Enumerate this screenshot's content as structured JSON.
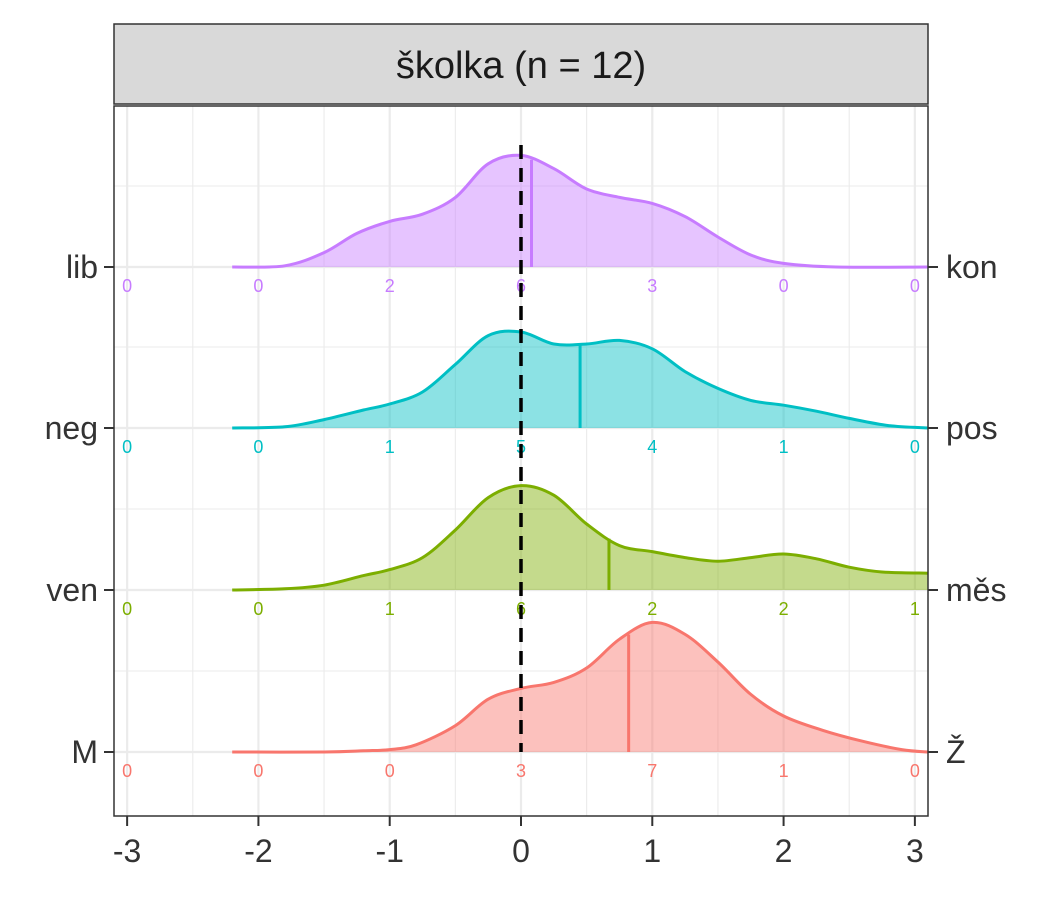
{
  "chart_data": {
    "type": "area",
    "facet_title": "školka (n = 12)",
    "xlim": [
      -3.1,
      3.1
    ],
    "x_ticks": [
      "-3",
      "-2",
      "-1",
      "0",
      "1",
      "2",
      "3"
    ],
    "x_tick_values": [
      -3,
      -2,
      -1,
      0,
      1,
      2,
      3
    ],
    "reference_line_x": 0,
    "count_positions": [
      -3,
      -2,
      -1,
      0,
      1,
      2,
      3
    ],
    "grid": true,
    "series": [
      {
        "left_label": "M",
        "right_label": "Ž",
        "color": "#F8766D",
        "mean": 0.82,
        "counts": [
          "0",
          "0",
          "0",
          "3",
          "7",
          "1",
          "0"
        ],
        "density": [
          [
            -2.2,
            0
          ],
          [
            -1.5,
            0
          ],
          [
            -1.2,
            0.01
          ],
          [
            -1.0,
            0.02
          ],
          [
            -0.8,
            0.06
          ],
          [
            -0.5,
            0.22
          ],
          [
            -0.25,
            0.44
          ],
          [
            0,
            0.53
          ],
          [
            0.25,
            0.58
          ],
          [
            0.5,
            0.7
          ],
          [
            0.75,
            0.94
          ],
          [
            1.0,
            1.08
          ],
          [
            1.25,
            0.98
          ],
          [
            1.5,
            0.75
          ],
          [
            1.75,
            0.48
          ],
          [
            2.0,
            0.3
          ],
          [
            2.3,
            0.18
          ],
          [
            2.6,
            0.09
          ],
          [
            2.9,
            0.02
          ],
          [
            3.1,
            0
          ]
        ]
      },
      {
        "left_label": "ven",
        "right_label": "měs",
        "color": "#7CAE00",
        "mean": 0.67,
        "counts": [
          "0",
          "0",
          "1",
          "6",
          "2",
          "2",
          "1"
        ],
        "density": [
          [
            -2.2,
            0
          ],
          [
            -1.8,
            0.01
          ],
          [
            -1.5,
            0.04
          ],
          [
            -1.2,
            0.12
          ],
          [
            -1.0,
            0.17
          ],
          [
            -0.75,
            0.27
          ],
          [
            -0.5,
            0.5
          ],
          [
            -0.25,
            0.77
          ],
          [
            0,
            0.87
          ],
          [
            0.25,
            0.79
          ],
          [
            0.5,
            0.55
          ],
          [
            0.75,
            0.37
          ],
          [
            1.0,
            0.32
          ],
          [
            1.25,
            0.27
          ],
          [
            1.5,
            0.24
          ],
          [
            1.75,
            0.27
          ],
          [
            2.0,
            0.3
          ],
          [
            2.25,
            0.26
          ],
          [
            2.5,
            0.19
          ],
          [
            2.75,
            0.15
          ],
          [
            3.1,
            0.14
          ]
        ]
      },
      {
        "left_label": "neg",
        "right_label": "pos",
        "color": "#00BFC4",
        "mean": 0.45,
        "counts": [
          "0",
          "0",
          "1",
          "5",
          "4",
          "1",
          "0"
        ],
        "density": [
          [
            -2.2,
            0
          ],
          [
            -1.8,
            0.01
          ],
          [
            -1.5,
            0.07
          ],
          [
            -1.2,
            0.15
          ],
          [
            -1.0,
            0.2
          ],
          [
            -0.75,
            0.3
          ],
          [
            -0.5,
            0.53
          ],
          [
            -0.25,
            0.77
          ],
          [
            0,
            0.8
          ],
          [
            0.25,
            0.7
          ],
          [
            0.5,
            0.7
          ],
          [
            0.75,
            0.73
          ],
          [
            1.0,
            0.66
          ],
          [
            1.25,
            0.47
          ],
          [
            1.5,
            0.33
          ],
          [
            1.75,
            0.23
          ],
          [
            2.0,
            0.19
          ],
          [
            2.25,
            0.14
          ],
          [
            2.5,
            0.08
          ],
          [
            2.8,
            0.02
          ],
          [
            3.1,
            0
          ]
        ]
      },
      {
        "left_label": "lib",
        "right_label": "kon",
        "color": "#C77CFF",
        "mean": 0.08,
        "counts": [
          "0",
          "0",
          "2",
          "6",
          "3",
          "0",
          "0"
        ],
        "density": [
          [
            -2.2,
            0
          ],
          [
            -1.8,
            0.01
          ],
          [
            -1.5,
            0.12
          ],
          [
            -1.25,
            0.28
          ],
          [
            -1.0,
            0.38
          ],
          [
            -0.75,
            0.44
          ],
          [
            -0.5,
            0.58
          ],
          [
            -0.25,
            0.86
          ],
          [
            0,
            0.93
          ],
          [
            0.25,
            0.82
          ],
          [
            0.5,
            0.65
          ],
          [
            0.75,
            0.58
          ],
          [
            1.0,
            0.53
          ],
          [
            1.25,
            0.42
          ],
          [
            1.5,
            0.25
          ],
          [
            1.75,
            0.1
          ],
          [
            2.0,
            0.03
          ],
          [
            2.4,
            0
          ],
          [
            3.1,
            0
          ]
        ]
      }
    ]
  }
}
